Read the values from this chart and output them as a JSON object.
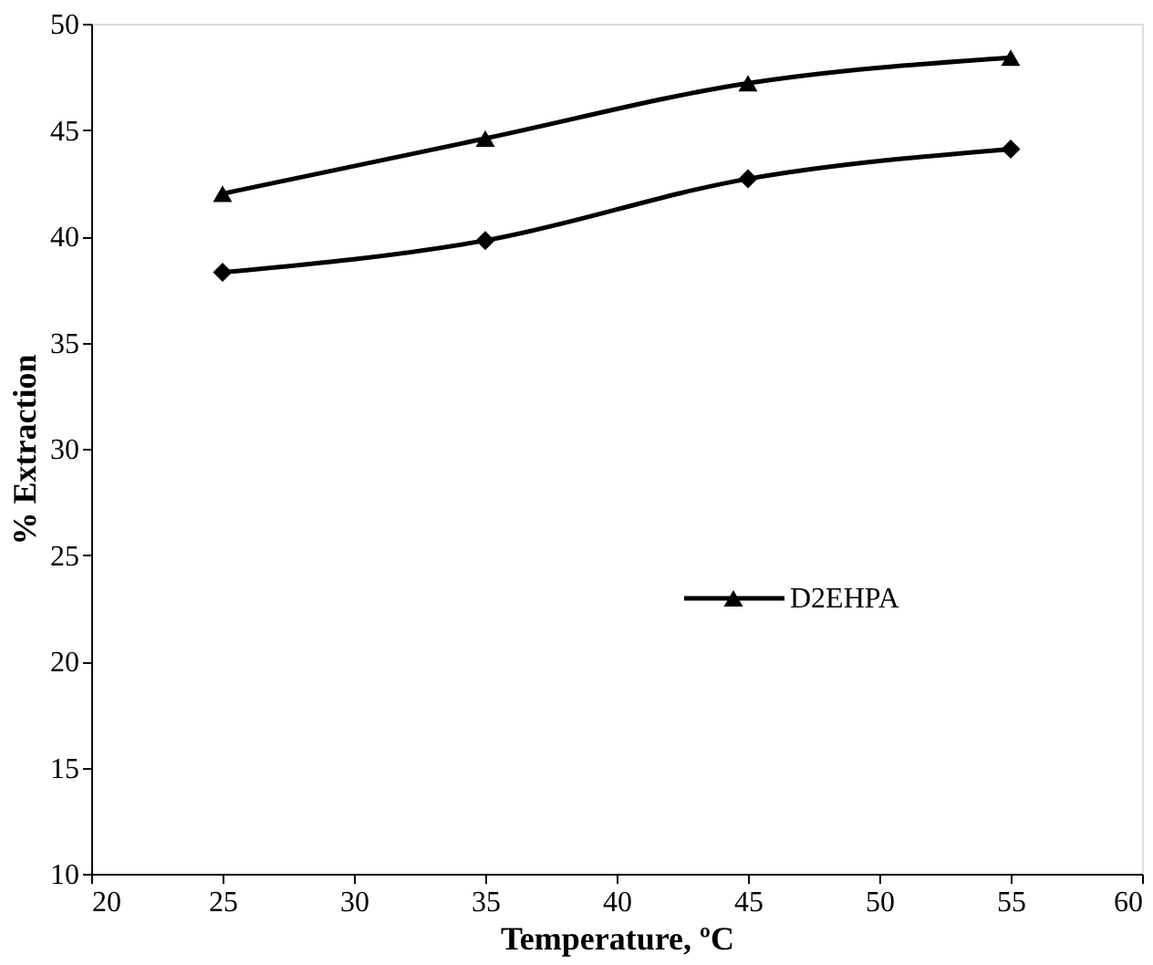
{
  "chart_data": {
    "type": "line",
    "xlabel": "Temperature, ºC",
    "ylabel": "% Extraction",
    "x": [
      25,
      35,
      45,
      55
    ],
    "series": [
      {
        "color": "#000000",
        "marker": "diamond",
        "values": [
          38.3,
          39.8,
          42.7,
          44.1
        ]
      },
      {
        "name": "D2EHPA",
        "color": "#000000",
        "marker": "triangle",
        "values": [
          42.0,
          44.6,
          47.2,
          48.4
        ]
      }
    ],
    "xlim": [
      20,
      60
    ],
    "xticks": [
      20,
      25,
      30,
      35,
      40,
      45,
      50,
      55,
      60
    ],
    "ylim": [
      10,
      50
    ],
    "yticks": [
      10,
      15,
      20,
      25,
      30,
      35,
      40,
      45,
      50
    ],
    "grid": false,
    "legend": "right",
    "line_style": "solid"
  }
}
